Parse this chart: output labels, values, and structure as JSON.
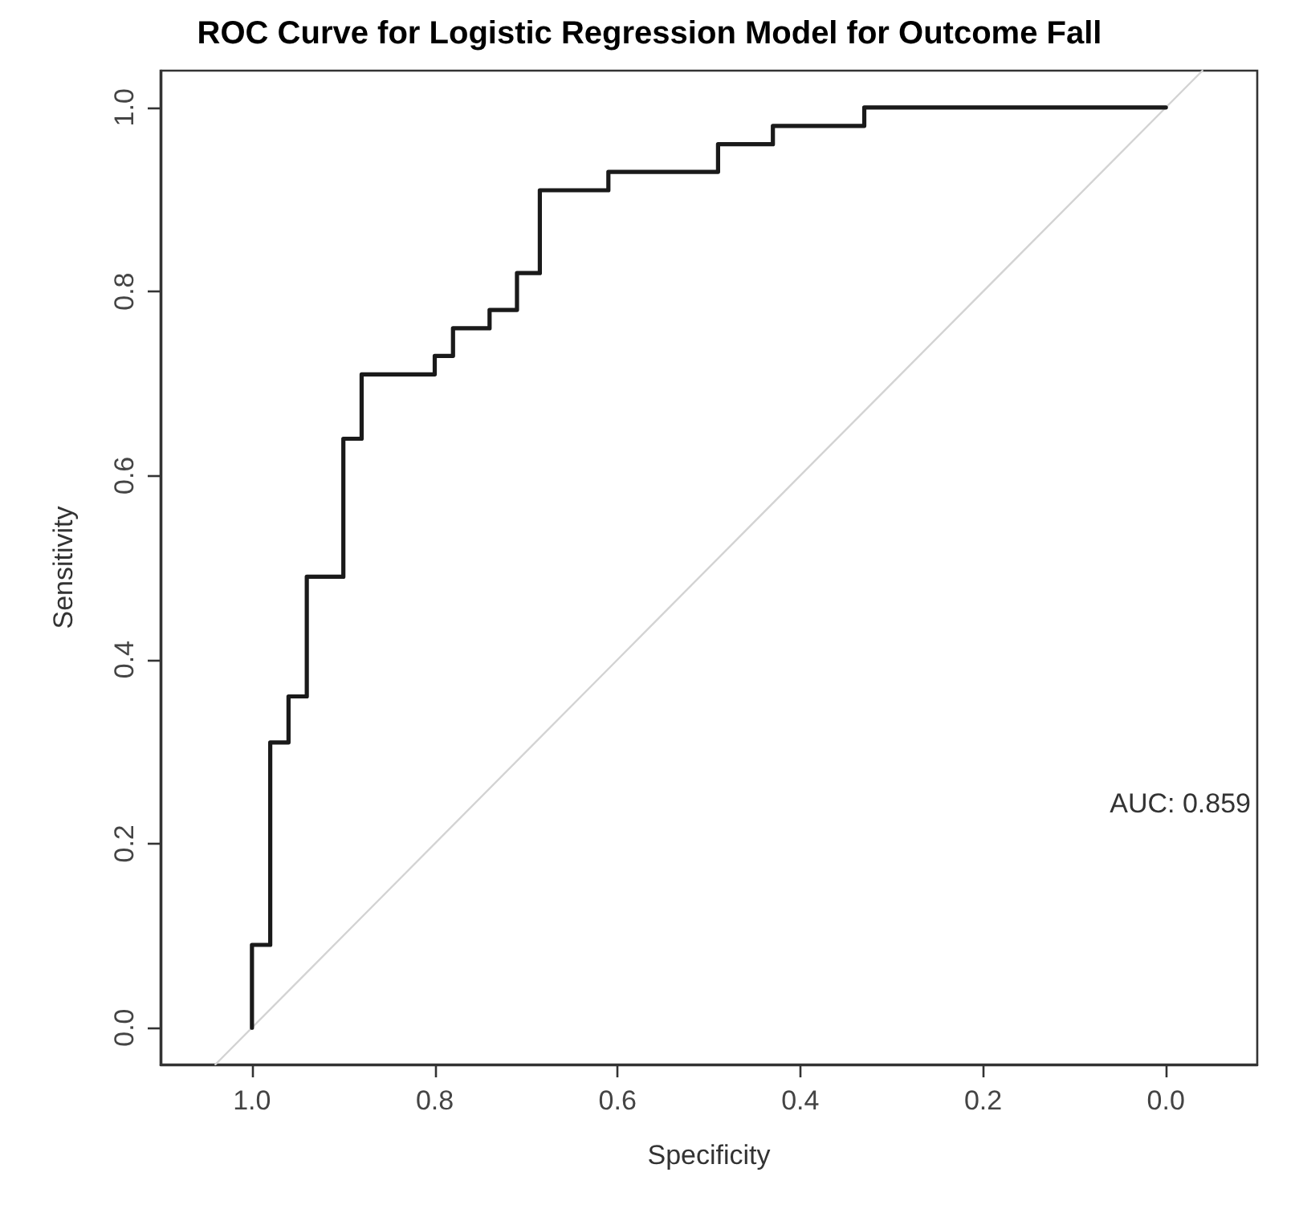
{
  "chart_data": {
    "type": "line",
    "title": "ROC Curve for Logistic Regression Model for Outcome Fall",
    "xlabel": "Specificity",
    "ylabel": "Sensitivity",
    "xlim": [
      1.1,
      -0.1
    ],
    "ylim": [
      -0.04,
      1.04
    ],
    "xticks": [
      {
        "value": 1,
        "label": "1.0"
      },
      0.8,
      0.6,
      0.4,
      0.2,
      {
        "value": 0,
        "label": "0.0"
      }
    ],
    "yticks": [
      {
        "value": 0,
        "label": "0.0"
      },
      0.2,
      0.4,
      0.6,
      0.8,
      {
        "value": 1,
        "label": "1.0"
      }
    ],
    "grid": false,
    "marker": "none",
    "line_style": "solid",
    "annotations": [
      "AUC: 0.859"
    ],
    "series": [
      {
        "color": "#d3d3d3",
        "x": [
          1.04,
          -0.04
        ],
        "values": [
          -0.04,
          1.04
        ]
      },
      {
        "color": "#1a1a1a",
        "x": [
          1.0,
          1.0,
          0.98,
          0.98,
          0.96,
          0.96,
          0.94,
          0.94,
          0.9,
          0.9,
          0.88,
          0.88,
          0.8,
          0.8,
          0.78,
          0.78,
          0.74,
          0.74,
          0.71,
          0.71,
          0.685,
          0.685,
          0.61,
          0.61,
          0.49,
          0.49,
          0.43,
          0.43,
          0.33,
          0.33,
          0.0
        ],
        "values": [
          0,
          0.09,
          0.09,
          0.31,
          0.31,
          0.36,
          0.36,
          0.49,
          0.49,
          0.64,
          0.64,
          0.71,
          0.71,
          0.73,
          0.73,
          0.76,
          0.76,
          0.78,
          0.78,
          0.82,
          0.82,
          0.91,
          0.91,
          0.93,
          0.93,
          0.96,
          0.96,
          0.98,
          0.98,
          1.0,
          1.0
        ]
      }
    ]
  }
}
